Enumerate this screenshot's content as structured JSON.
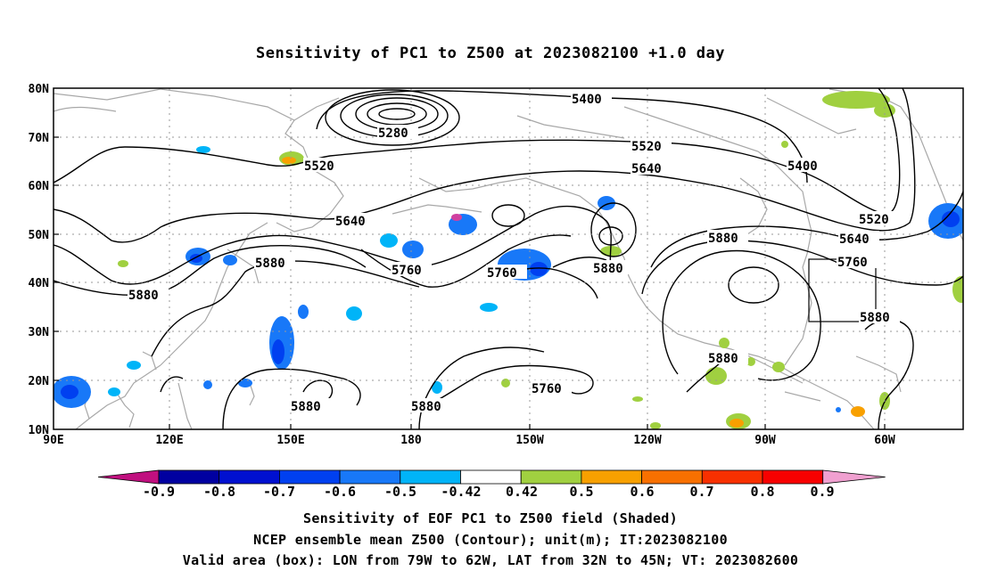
{
  "title": "Sensitivity of PC1 to Z500 at 2023082100 +1.0 day",
  "axes": {
    "lat_labels": [
      "80N",
      "70N",
      "60N",
      "50N",
      "40N",
      "30N",
      "20N",
      "10N"
    ],
    "lon_labels": [
      "90E",
      "120E",
      "150E",
      "180",
      "150W",
      "120W",
      "90W",
      "60W"
    ]
  },
  "contour_labels": [
    "5400",
    "5280",
    "5520",
    "5400",
    "5520",
    "5640",
    "5640",
    "5520",
    "5640",
    "5760",
    "5760",
    "5880",
    "5880",
    "5760",
    "5880",
    "5880",
    "5880",
    "5880",
    "5760",
    "5880",
    "5880",
    "5880"
  ],
  "colorbar": {
    "ticks": [
      "-0.9",
      "-0.8",
      "-0.7",
      "-0.6",
      "-0.5",
      "-0.42",
      "0.42",
      "0.5",
      "0.6",
      "0.7",
      "0.8",
      "0.9"
    ],
    "colors": [
      "#c0107f",
      "#0000a0",
      "#0010d0",
      "#0040f0",
      "#1878f8",
      "#00b4f8",
      "#ffffff",
      "#a0d040",
      "#f8a000",
      "#f87000",
      "#f83000",
      "#f80000",
      "#f0a0d0"
    ]
  },
  "captions": {
    "line1": "Sensitivity of EOF PC1 to Z500 field (Shaded)",
    "line2": "NCEP ensemble mean Z500 (Contour); unit(m); IT:2023082100",
    "line3": "Valid area (box): LON from 79W to 62W, LAT from 32N to 45N; VT: 2023082600"
  }
}
